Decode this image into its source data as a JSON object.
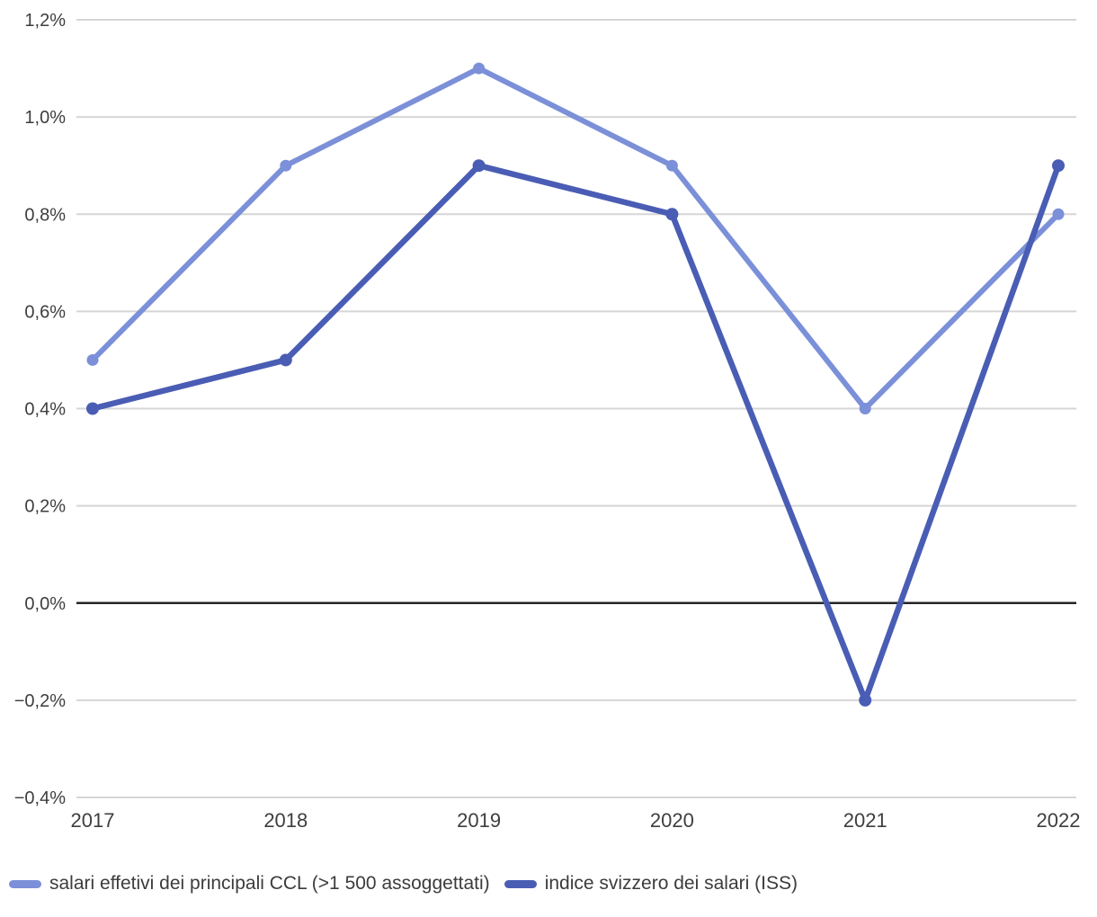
{
  "chart_data": {
    "type": "line",
    "x_categories": [
      "2017",
      "2018",
      "2019",
      "2020",
      "2021",
      "2022"
    ],
    "series": [
      {
        "name": "salari effetivi dei principali CCL (>1 500 assoggettati)",
        "color": "#7B90D8",
        "values": [
          0.5,
          0.9,
          1.1,
          0.9,
          0.4,
          0.8
        ]
      },
      {
        "name": "indice svizzero dei salari (ISS)",
        "color": "#4A5DB4",
        "values": [
          0.4,
          0.5,
          0.9,
          0.8,
          -0.2,
          0.9
        ]
      }
    ],
    "ylim": [
      -0.4,
      1.2
    ],
    "ytick_step": 0.2,
    "ytick_labels": [
      "−0,4%",
      "−0,2%",
      "0,0%",
      "0,2%",
      "0,4%",
      "0,6%",
      "0,8%",
      "1,0%",
      "1,2%"
    ],
    "title": "",
    "xlabel": "",
    "ylabel": "",
    "grid": true,
    "zero_line": true,
    "legend_position": "bottom"
  },
  "colors": {
    "gridline": "#D6D6D6",
    "zero_line": "#262626",
    "axis_text": "#3E3E3E",
    "legend_text": "#3C3C3C"
  }
}
